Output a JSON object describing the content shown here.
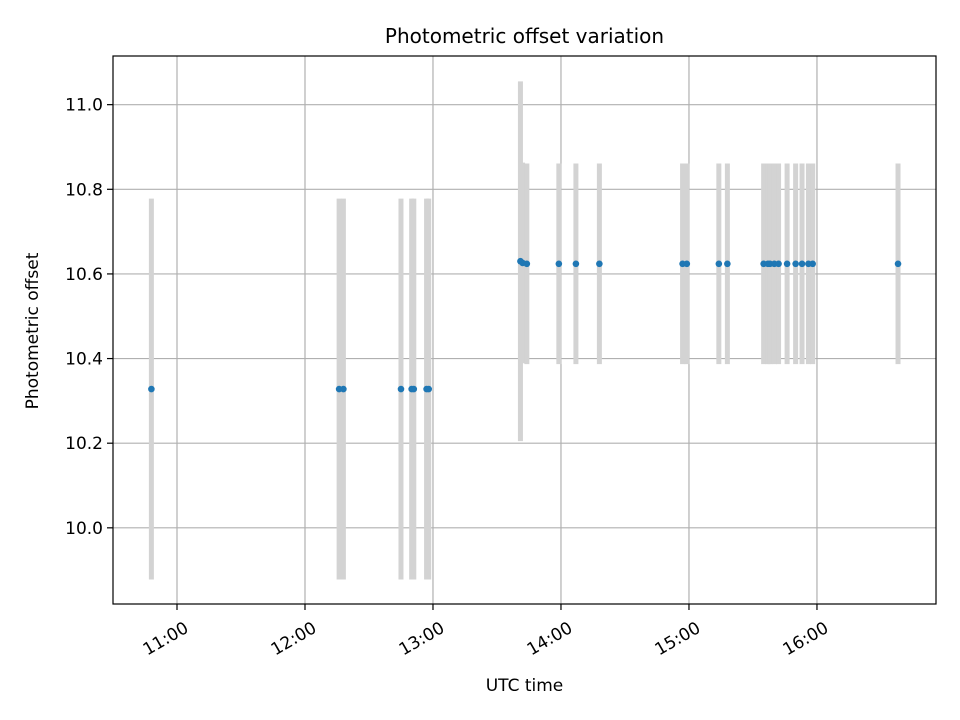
{
  "chart_data": {
    "type": "scatter",
    "title": "Photometric offset variation",
    "xlabel": "UTC time",
    "ylabel": "Photometric offset",
    "x_tick_labels": [
      "11:00",
      "12:00",
      "13:00",
      "14:00",
      "15:00",
      "16:00"
    ],
    "x_tick_hours": [
      11,
      12,
      13,
      14,
      15,
      16
    ],
    "y_ticks": [
      10.0,
      10.2,
      10.4,
      10.6,
      10.8,
      11.0
    ],
    "y_tick_labels": [
      "10.0",
      "10.2",
      "10.4",
      "10.6",
      "10.8",
      "11.0"
    ],
    "xlim_hours": [
      10.5,
      16.93
    ],
    "ylim": [
      9.82,
      11.115
    ],
    "grid": true,
    "point_color": "#1f77b4",
    "errorbar_color": "#d3d3d3",
    "points": [
      {
        "x": "10:48",
        "y": 10.328,
        "err": 0.45
      },
      {
        "x": "12:16",
        "y": 10.328,
        "err": 0.45
      },
      {
        "x": "12:18",
        "y": 10.328,
        "err": 0.45
      },
      {
        "x": "12:45",
        "y": 10.328,
        "err": 0.45
      },
      {
        "x": "12:50",
        "y": 10.328,
        "err": 0.45
      },
      {
        "x": "12:51",
        "y": 10.328,
        "err": 0.45
      },
      {
        "x": "12:57",
        "y": 10.328,
        "err": 0.45
      },
      {
        "x": "12:58",
        "y": 10.328,
        "err": 0.45
      },
      {
        "x": "13:41",
        "y": 10.63,
        "err": 0.425
      },
      {
        "x": "13:42",
        "y": 10.626,
        "err": 0.237
      },
      {
        "x": "13:44",
        "y": 10.624,
        "err": 0.237
      },
      {
        "x": "13:59",
        "y": 10.624,
        "err": 0.237
      },
      {
        "x": "14:07",
        "y": 10.624,
        "err": 0.237
      },
      {
        "x": "14:18",
        "y": 10.624,
        "err": 0.237
      },
      {
        "x": "14:57",
        "y": 10.624,
        "err": 0.237
      },
      {
        "x": "14:59",
        "y": 10.624,
        "err": 0.237
      },
      {
        "x": "15:14",
        "y": 10.624,
        "err": 0.237
      },
      {
        "x": "15:18",
        "y": 10.624,
        "err": 0.237
      },
      {
        "x": "15:35",
        "y": 10.624,
        "err": 0.237
      },
      {
        "x": "15:37",
        "y": 10.624,
        "err": 0.237
      },
      {
        "x": "15:38",
        "y": 10.624,
        "err": 0.237
      },
      {
        "x": "15:40",
        "y": 10.624,
        "err": 0.237
      },
      {
        "x": "15:42",
        "y": 10.624,
        "err": 0.237
      },
      {
        "x": "15:46",
        "y": 10.624,
        "err": 0.237
      },
      {
        "x": "15:50",
        "y": 10.624,
        "err": 0.237
      },
      {
        "x": "15:53",
        "y": 10.624,
        "err": 0.237
      },
      {
        "x": "15:56",
        "y": 10.624,
        "err": 0.237
      },
      {
        "x": "15:58",
        "y": 10.624,
        "err": 0.237
      },
      {
        "x": "16:38",
        "y": 10.624,
        "err": 0.237
      }
    ]
  }
}
